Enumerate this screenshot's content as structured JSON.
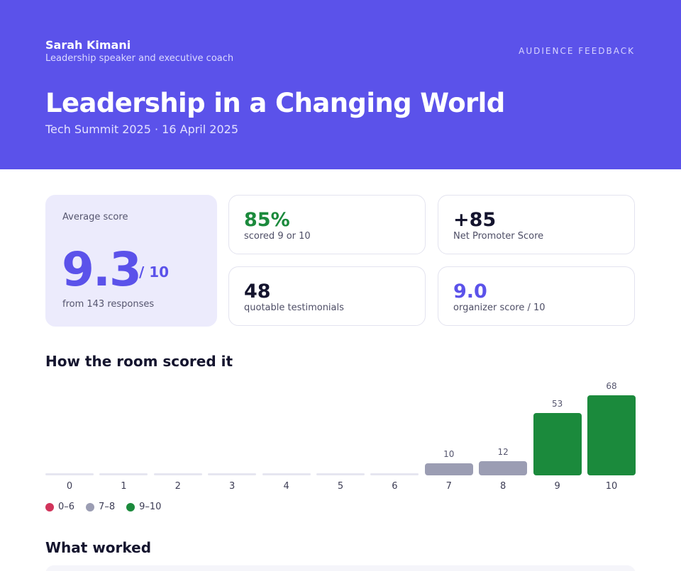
{
  "header": {
    "speaker_name": "Sarah Kimani",
    "speaker_role": "Leadership speaker and executive coach",
    "eyebrow": "AUDIENCE FEEDBACK",
    "title": "Leadership in a Changing World",
    "subtitle": "Tech Summit 2025 · 16 April 2025"
  },
  "summary": {
    "average_label": "Average score",
    "average_value": "9.3",
    "average_unit": "/ 10",
    "average_foot": "from 143 responses"
  },
  "stats": [
    {
      "value": "85%",
      "label": "scored 9 or 10"
    },
    {
      "value": "+85",
      "label": "Net Promoter Score"
    },
    {
      "value": "48",
      "label": "quotable testimonials"
    },
    {
      "value": "9.0",
      "label": "organizer score / 10"
    }
  ],
  "sections": {
    "distribution_title": "How the room scored it",
    "worked_title": "What worked"
  },
  "colors": {
    "accent": "#5b52ea",
    "detractor": "#d1345b",
    "passive": "#9b9db3",
    "promoter": "#1b8a3c",
    "empty": "#e6e6f0"
  },
  "chart_data": {
    "type": "bar",
    "categories": [
      "0",
      "1",
      "2",
      "3",
      "4",
      "5",
      "6",
      "7",
      "8",
      "9",
      "10"
    ],
    "values": [
      0,
      0,
      0,
      0,
      0,
      0,
      0,
      10,
      12,
      53,
      68
    ],
    "ylim": [
      0,
      68
    ],
    "legend": [
      {
        "label": "0–6",
        "color": "#d1345b"
      },
      {
        "label": "7–8",
        "color": "#9b9db3"
      },
      {
        "label": "9–10",
        "color": "#1b8a3c"
      }
    ]
  }
}
